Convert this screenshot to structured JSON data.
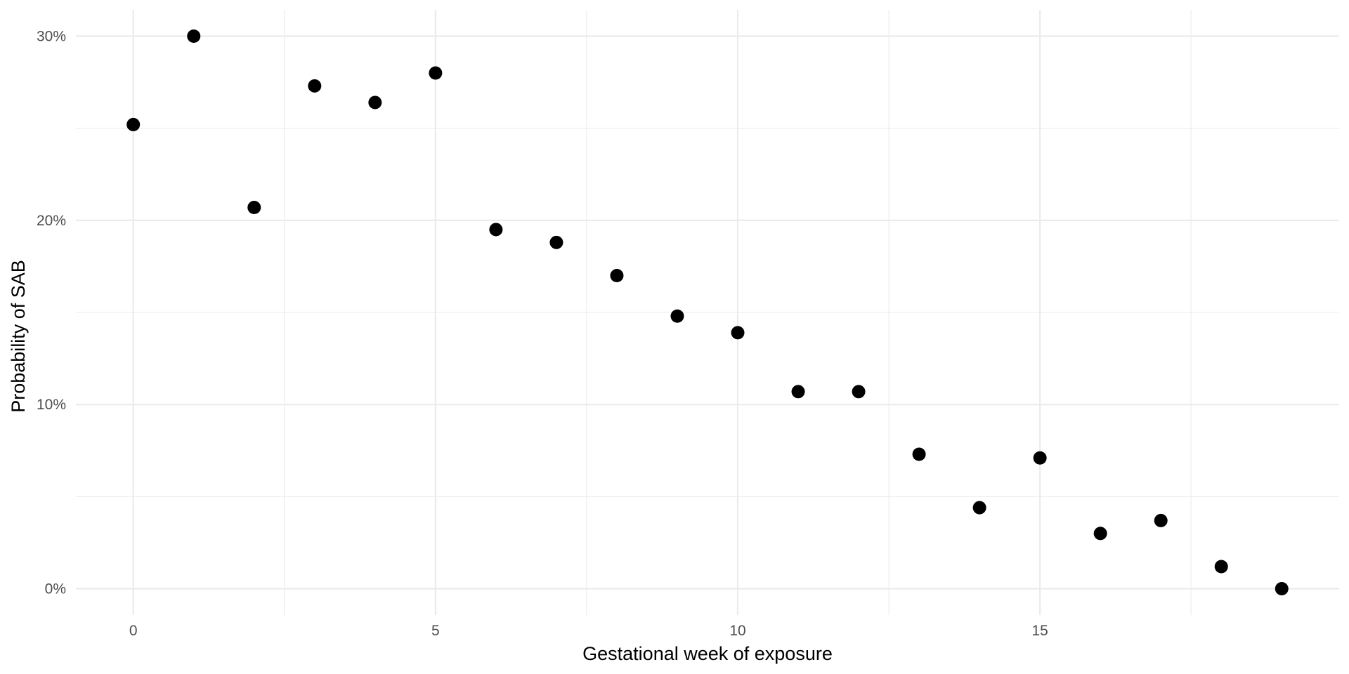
{
  "chart_data": {
    "type": "scatter",
    "title": "",
    "xlabel": "Gestational week of exposure",
    "ylabel": "Probability of SAB",
    "xlim": [
      -0.95,
      19.95
    ],
    "ylim": [
      -0.0143,
      0.3143
    ],
    "x_major_ticks": [
      0,
      5,
      10,
      15
    ],
    "x_minor_ticks": [
      2.5,
      7.5,
      12.5,
      17.5
    ],
    "y_major_ticks": [
      0,
      0.1,
      0.2,
      0.3
    ],
    "y_minor_ticks": [
      0.05,
      0.15,
      0.25
    ],
    "x_tick_labels": [
      "0",
      "5",
      "10",
      "15"
    ],
    "y_tick_labels": [
      "0%",
      "10%",
      "20%",
      "30%"
    ],
    "grid": true,
    "legend": false,
    "point_color": "#000000",
    "x": [
      0,
      1,
      2,
      3,
      4,
      5,
      6,
      7,
      8,
      9,
      10,
      11,
      12,
      13,
      14,
      15,
      16,
      17,
      18,
      19
    ],
    "y": [
      0.252,
      0.3,
      0.207,
      0.273,
      0.264,
      0.28,
      0.195,
      0.188,
      0.17,
      0.148,
      0.139,
      0.107,
      0.107,
      0.073,
      0.044,
      0.071,
      0.03,
      0.037,
      0.012,
      0.0
    ]
  }
}
